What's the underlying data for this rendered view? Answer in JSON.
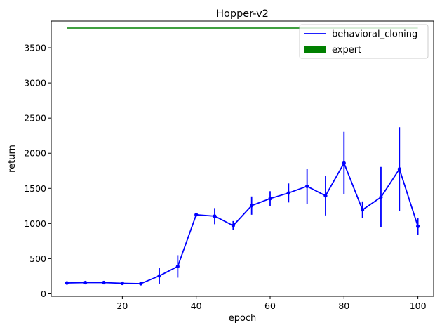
{
  "chart_data": {
    "type": "line",
    "title": "Hopper-v2",
    "xlabel": "epoch",
    "ylabel": "return",
    "xlim": [
      0.75,
      104.25
    ],
    "ylim": [
      -35,
      3880
    ],
    "xticks": [
      20,
      40,
      60,
      80,
      100
    ],
    "yticks": [
      0,
      500,
      1000,
      1500,
      2000,
      2500,
      3000,
      3500
    ],
    "grid": false,
    "legend_position": "top-right",
    "expert": {
      "name": "expert",
      "color": "#008000",
      "value": 3780,
      "x_range": [
        5,
        100
      ]
    },
    "series": [
      {
        "name": "behavioral_cloning",
        "color": "#0000ff",
        "x": [
          5,
          10,
          15,
          20,
          25,
          30,
          35,
          40,
          45,
          50,
          55,
          60,
          65,
          70,
          75,
          80,
          85,
          90,
          95,
          100
        ],
        "values": [
          155,
          160,
          160,
          150,
          145,
          255,
          390,
          1125,
          1105,
          970,
          1255,
          1355,
          1435,
          1530,
          1395,
          1860,
          1195,
          1375,
          1775,
          960
        ],
        "errors": [
          10,
          10,
          12,
          12,
          12,
          110,
          160,
          10,
          115,
          65,
          130,
          105,
          135,
          250,
          280,
          445,
          120,
          430,
          595,
          120
        ]
      }
    ]
  }
}
